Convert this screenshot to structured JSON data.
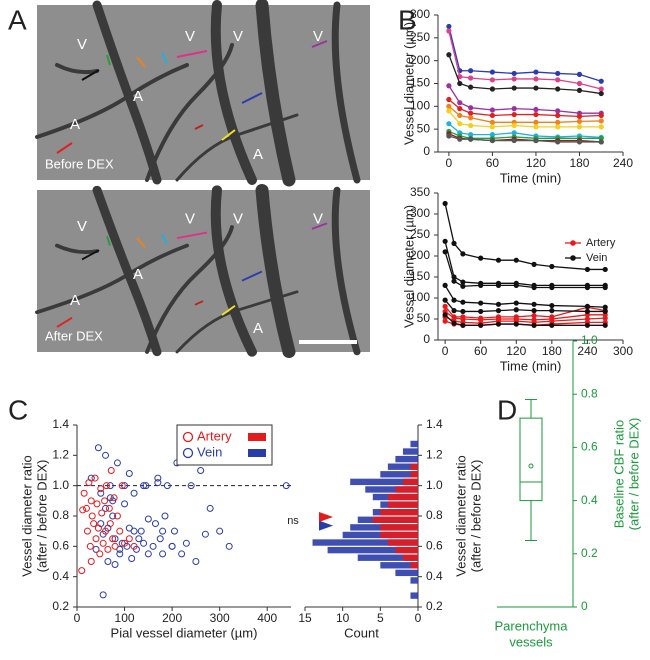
{
  "panel_labels": [
    "A",
    "B",
    "C",
    "D"
  ],
  "images": [
    {
      "caption": "Before DEX",
      "labels": [
        "V",
        "V",
        "V",
        "V",
        "A",
        "A",
        "A"
      ]
    },
    {
      "caption": "After DEX",
      "labels": [
        "V",
        "V",
        "V",
        "V",
        "A",
        "A",
        "A"
      ]
    }
  ],
  "chart_data": [
    {
      "type": "line",
      "xlabel": "Time (min)",
      "ylabel": "Vessel diameter (µm)",
      "x": [
        0,
        15,
        30,
        60,
        90,
        120,
        150,
        180,
        210
      ],
      "xlim": [
        -15,
        240
      ],
      "xticks": [
        0,
        60,
        120,
        180,
        240
      ],
      "ylim": [
        0,
        300
      ],
      "yticks": [
        0,
        50,
        100,
        150,
        200,
        250,
        300
      ],
      "series": [
        {
          "color": "#2a3cb0",
          "values": [
            275,
            178,
            178,
            175,
            172,
            175,
            172,
            170,
            155
          ]
        },
        {
          "color": "#e0408a",
          "values": [
            265,
            165,
            162,
            158,
            160,
            160,
            158,
            150,
            138
          ]
        },
        {
          "color": "#222222",
          "values": [
            213,
            150,
            142,
            138,
            140,
            140,
            138,
            135,
            128
          ]
        },
        {
          "color": "#9b30a0",
          "values": [
            145,
            108,
            97,
            92,
            95,
            93,
            90,
            85,
            85
          ]
        },
        {
          "color": "#e02020",
          "values": [
            115,
            95,
            85,
            80,
            82,
            82,
            80,
            78,
            80
          ]
        },
        {
          "color": "#f08020",
          "values": [
            100,
            80,
            75,
            65,
            65,
            65,
            65,
            67,
            68
          ]
        },
        {
          "color": "#f0d020",
          "values": [
            90,
            62,
            58,
            55,
            58,
            55,
            55,
            55,
            55
          ]
        },
        {
          "color": "#20b0e0",
          "values": [
            62,
            42,
            38,
            38,
            42,
            35,
            33,
            35,
            32
          ]
        },
        {
          "color": "#20a040",
          "values": [
            45,
            35,
            30,
            30,
            33,
            30,
            30,
            30,
            30
          ]
        },
        {
          "color": "#902020",
          "values": [
            40,
            30,
            28,
            25,
            28,
            25,
            25,
            25,
            22
          ]
        },
        {
          "color": "#555555",
          "values": [
            35,
            28,
            28,
            25,
            25,
            25,
            22,
            22,
            22
          ]
        }
      ]
    },
    {
      "type": "line",
      "xlabel": "Time (min)",
      "ylabel": "Vessel diameter (µm)",
      "x": [
        0,
        15,
        30,
        60,
        90,
        120,
        150,
        180,
        240,
        270
      ],
      "xlim": [
        -12,
        300
      ],
      "xticks": [
        0,
        60,
        120,
        180,
        240,
        300
      ],
      "ylim": [
        0,
        350
      ],
      "yticks": [
        0,
        50,
        100,
        150,
        200,
        250,
        300,
        350
      ],
      "legend": "upper right",
      "series": [
        {
          "name": "Artery",
          "color": "#e41a1c",
          "lines": [
            [
              80,
              55,
              55,
              52,
              55,
              55,
              58,
              55,
              78,
              70
            ],
            [
              68,
              52,
              50,
              48,
              50,
              50,
              48,
              50,
              60,
              60
            ],
            [
              55,
              45,
              42,
              40,
              45,
              45,
              42,
              45,
              50,
              52
            ],
            [
              45,
              38,
              35,
              35,
              38,
              38,
              35,
              38,
              42,
              42
            ]
          ]
        },
        {
          "name": "Vein",
          "color": "#111111",
          "lines": [
            [
              325,
              230,
              205,
              195,
              190,
              190,
              180,
              175,
              168,
              168
            ],
            [
              235,
              150,
              138,
              135,
              135,
              135,
              130,
              130,
              130,
              130
            ],
            [
              210,
              140,
              128,
              130,
              130,
              130,
              125,
              125,
              125,
              125
            ],
            [
              130,
              95,
              90,
              88,
              85,
              88,
              85,
              82,
              80,
              78
            ],
            [
              95,
              70,
              68,
              68,
              70,
              72,
              70,
              70,
              68,
              68
            ],
            [
              60,
              40,
              35,
              35,
              38,
              38,
              35,
              35,
              35,
              35
            ]
          ]
        }
      ]
    },
    {
      "type": "scatter",
      "xlabel": "Pial vessel diameter (µm)",
      "ylabel": [
        "Vessel diameter ratio",
        "(after / before DEX)"
      ],
      "xlim": [
        0,
        450
      ],
      "xticks": [
        0,
        100,
        200,
        300,
        400
      ],
      "ylim": [
        0.2,
        1.4
      ],
      "yticks": [
        0.2,
        0.4,
        0.6,
        0.8,
        {
          "value": 1,
          "label": "1.0"
        },
        1.2,
        1.4
      ],
      "reference_line": 1,
      "legend": "upper center",
      "series": [
        {
          "name": "Artery",
          "color": "#e41a1c",
          "x": [
            10,
            15,
            20,
            22,
            25,
            28,
            30,
            32,
            35,
            38,
            40,
            42,
            45,
            48,
            50,
            52,
            55,
            58,
            60,
            62,
            65,
            68,
            70,
            72,
            75,
            78,
            80,
            85,
            90,
            95,
            100,
            110,
            120,
            12,
            30
          ],
          "values": [
            0.44,
            0.95,
            0.85,
            0.7,
            1.02,
            0.6,
            0.9,
            0.8,
            0.75,
            1.05,
            0.65,
            0.88,
            0.72,
            0.55,
            0.98,
            0.82,
            0.62,
            0.9,
            0.7,
            1.0,
            0.58,
            0.85,
            0.75,
            1.1,
            0.65,
            0.92,
            0.6,
            0.8,
            0.7,
            1.0,
            0.62,
            0.65,
            0.6,
            0.84,
            0.5
          ]
        },
        {
          "name": "Vein",
          "color": "#2a3ca8",
          "x": [
            30,
            40,
            45,
            50,
            55,
            60,
            65,
            70,
            75,
            80,
            85,
            90,
            95,
            100,
            105,
            110,
            115,
            120,
            125,
            130,
            135,
            140,
            145,
            150,
            160,
            165,
            170,
            175,
            180,
            185,
            190,
            200,
            205,
            210,
            220,
            230,
            240,
            250,
            260,
            270,
            280,
            300,
            320,
            440,
            50,
            60,
            70,
            80,
            100,
            120,
            150,
            170,
            55,
            65,
            75,
            90,
            110,
            140,
            180,
            200
          ],
          "values": [
            1.05,
            0.58,
            1.25,
            0.95,
            0.28,
            1.2,
            0.5,
            1.0,
            0.8,
            0.48,
            1.15,
            0.55,
            0.62,
            1.0,
            0.6,
            0.72,
            0.52,
            0.95,
            0.58,
            0.65,
            0.7,
            0.62,
            1.0,
            0.55,
            0.6,
            0.75,
            1.05,
            0.65,
            0.55,
            0.8,
            1.0,
            0.6,
            0.7,
            1.15,
            0.55,
            0.62,
            1.0,
            0.5,
            1.1,
            0.68,
            0.85,
            0.7,
            0.6,
            1.0,
            0.75,
            0.85,
            0.92,
            0.65,
            0.88,
            0.7,
            0.78,
            1.02,
            0.68,
            0.72,
            0.9,
            0.58,
            1.08,
            1.0,
            0.7,
            0.6
          ]
        }
      ]
    },
    {
      "type": "histogram",
      "orientation": "horizontal",
      "xlabel": "Count",
      "ylabel": [
        "Vessel diameter ratio",
        "(after / before DEX)"
      ],
      "xlim": [
        15,
        0
      ],
      "xticks": [
        15,
        10,
        5,
        0
      ],
      "ylim": [
        0.2,
        1.4
      ],
      "yticks": [
        0.2,
        0.4,
        0.6,
        0.8,
        {
          "value": 1,
          "label": "1.0"
        },
        1.2,
        1.4
      ],
      "bins": [
        0.25,
        0.3,
        0.35,
        0.4,
        0.45,
        0.5,
        0.55,
        0.6,
        0.65,
        0.7,
        0.75,
        0.8,
        0.85,
        0.9,
        0.95,
        1.0,
        1.05,
        1.1,
        1.15,
        1.2,
        1.25,
        1.3
      ],
      "annotation": "ns",
      "series": [
        {
          "color": "#2a3ca8",
          "values": [
            1,
            0,
            1,
            3,
            5,
            8,
            12,
            14,
            10,
            9,
            8,
            6,
            5,
            6,
            7,
            9,
            5,
            4,
            3,
            2,
            1
          ],
          "mean": 0.75
        },
        {
          "color": "#e41a1c",
          "values": [
            0,
            0,
            0,
            0,
            1,
            2,
            3,
            4,
            5,
            5,
            6,
            5,
            4,
            4,
            3,
            2,
            1,
            1,
            0,
            0,
            0
          ],
          "mean": 0.78
        }
      ]
    },
    {
      "type": "box",
      "xlabel": [
        "Parenchyma",
        "vessels"
      ],
      "ylabel": [
        "Baseline CBF ratio",
        "(after / before DEX)"
      ],
      "ylim": [
        0,
        1
      ],
      "yticks": [
        0,
        0.2,
        0.4,
        0.6,
        0.8,
        {
          "value": 1,
          "label": "1.0"
        }
      ],
      "color": "#1a9a3a",
      "box": {
        "whisker_low": 0.25,
        "q1": 0.4,
        "median": 0.47,
        "q3": 0.71,
        "whisker_high": 0.78,
        "mean": 0.53
      }
    }
  ]
}
